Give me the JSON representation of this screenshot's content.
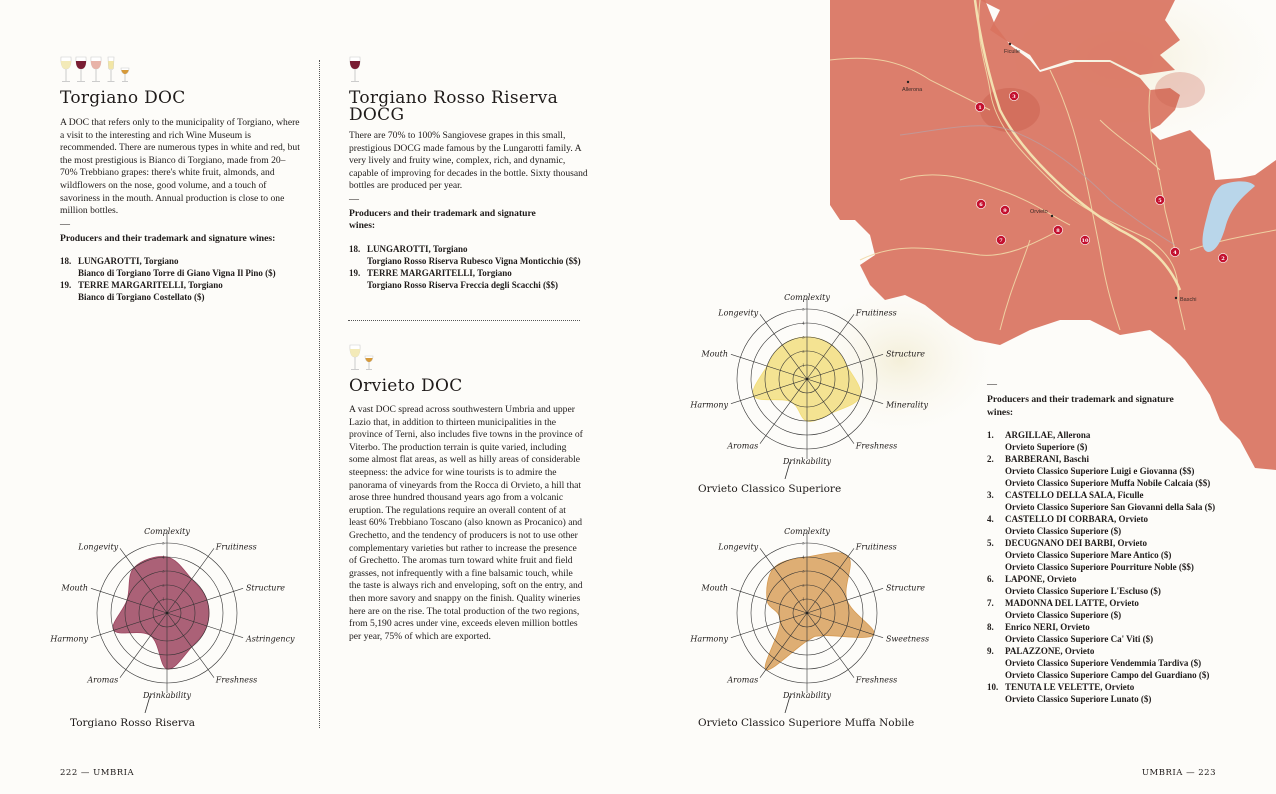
{
  "left_page": {
    "torgiano_doc": {
      "icons": [
        "white-wine-glass-icon",
        "red-wine-glass-icon",
        "rose-wine-glass-icon",
        "sparkling-wine-glass-icon",
        "dessert-wine-glass-icon"
      ],
      "title": "Torgiano DOC",
      "body": "A DOC that refers only to the municipality of Torgiano, where a visit to the interesting and rich Wine Museum is recommended. There are numerous types in white and red, but the most prestigious is Bianco di Torgiano, made from 20–70% Trebbiano grapes: there's white fruit, almonds, and wildflowers on the nose, good volume, and a touch of savoriness in the mouth. Annual production is close to one million bottles.",
      "dash": "—",
      "producers_heading": "Producers and their trademark and signature wines:",
      "producers": [
        {
          "num": "18.",
          "name": "LUNGAROTTI, Torgiano",
          "wines": [
            "Bianco di Torgiano Torre di Giano Vigna Il Pino ($)"
          ]
        },
        {
          "num": "19.",
          "name": "TERRE MARGARITELLI, Torgiano",
          "wines": [
            "Bianco di Torgiano Costellato ($)"
          ]
        }
      ]
    },
    "torgiano_rosso": {
      "icons": [
        "red-wine-glass-icon"
      ],
      "title": "Torgiano Rosso Riserva DOCG",
      "body": "There are 70% to 100% Sangiovese grapes in this small, prestigious DOCG made famous by the Lungarotti family. A very lively and fruity wine, complex, rich, and dynamic, capable of improving for decades in the bottle. Sixty thousand bottles are produced per year.",
      "dash": "—",
      "producers_heading": "Producers and their trademark and signature wines:",
      "producers": [
        {
          "num": "18.",
          "name": "LUNGAROTTI, Torgiano",
          "wines": [
            "Torgiano Rosso Riserva Rubesco Vigna Monticchio ($$)"
          ]
        },
        {
          "num": "19.",
          "name": "TERRE MARGARITELLI, Torgiano",
          "wines": [
            "Torgiano Rosso Riserva Freccia degli Scacchi ($$)"
          ]
        }
      ]
    },
    "orvieto_doc": {
      "icons": [
        "white-wine-glass-icon",
        "dessert-wine-glass-icon"
      ],
      "title": "Orvieto DOC",
      "body": "A vast DOC spread across southwestern Umbria and upper Lazio that, in addition to thirteen municipalities in the province of Terni, also includes five towns in the province of Viterbo. The production terrain is quite varied, including some almost flat areas, as well as hilly areas of considerable steepness: the advice for wine tourists is to admire the panorama of vineyards from the Rocca di Orvieto, a hill that arose three hundred thousand years ago from a volcanic eruption. The regulations require an overall content of at least 60% Trebbiano Toscano (also known as Procanico) and Grechetto, and the tendency of producers is not to use other complementary varieties but rather to increase the presence of Grechetto. The aromas turn toward white fruit and field grasses, not infrequently with a fine balsamic touch, while the taste is always rich and enveloping, soft on the entry, and then more savory and snappy on the finish. Quality wineries here are on the rise. The total production of the two regions, from 5,190 acres under vine, exceeds eleven million bottles per year, 75% of which are exported."
    },
    "footer": "222 — UMBRIA"
  },
  "right_page": {
    "map": {
      "towns": [
        "Ficulle",
        "Allerona",
        "Orvieto",
        "Baschi"
      ],
      "markers": [
        "1",
        "2",
        "3",
        "4",
        "5",
        "6",
        "7",
        "8",
        "9",
        "10"
      ],
      "colors": {
        "land": "#d9735f",
        "marker": "#c4102f",
        "lake": "#b9d6ea",
        "roads": "#f1d9a8"
      }
    },
    "dash": "—",
    "producers_heading": "Producers and their trademark and signature wines:",
    "producers": [
      {
        "num": "1.",
        "name": "ARGILLAE, Allerona",
        "wines": [
          "Orvieto Superiore ($)"
        ]
      },
      {
        "num": "2.",
        "name": "BARBERANI, Baschi",
        "wines": [
          "Orvieto Classico Superiore Luigi e Giovanna ($$)",
          "Orvieto Classico Superiore Muffa Nobile Calcaia ($$)"
        ]
      },
      {
        "num": "3.",
        "name": "CASTELLO DELLA SALA, Ficulle",
        "wines": [
          "Orvieto Classico Superiore San Giovanni della Sala ($)"
        ]
      },
      {
        "num": "4.",
        "name": "CASTELLO DI CORBARA, Orvieto",
        "wines": [
          "Orvieto Classico Superiore ($)"
        ]
      },
      {
        "num": "5.",
        "name": "DECUGNANO DEI BARBI, Orvieto",
        "wines": [
          "Orvieto Classico Superiore Mare Antico ($)",
          "Orvieto Classico Superiore Pourriture Noble ($$)"
        ]
      },
      {
        "num": "6.",
        "name": "LAPONE, Orvieto",
        "wines": [
          "Orvieto Classico Superiore L'Escluso ($)"
        ]
      },
      {
        "num": "7.",
        "name": "MADONNA DEL LATTE, Orvieto",
        "wines": [
          "Orvieto Classico Superiore ($)"
        ]
      },
      {
        "num": "8.",
        "name": "Enrico NERI, Orvieto",
        "wines": [
          "Orvieto Classico Superiore Ca' Viti ($)"
        ]
      },
      {
        "num": "9.",
        "name": "PALAZZONE, Orvieto",
        "wines": [
          "Orvieto Classico Superiore Vendemmia Tardiva ($)",
          "Orvieto Classico Superiore Campo del Guardiano ($)"
        ]
      },
      {
        "num": "10.",
        "name": "TENUTA LE VELETTE, Orvieto",
        "wines": [
          "Orvieto Classico Superiore Lunato ($)"
        ]
      }
    ],
    "footer": "UMBRIA — 223"
  },
  "chart_data": [
    {
      "type": "radar",
      "title": "Torgiano Rosso Riserva",
      "axes": [
        "Complexity",
        "Fruitiness",
        "Structure",
        "Astringency",
        "Freshness",
        "Drinkability",
        "Aromas",
        "Harmony",
        "Mouth",
        "Longevity"
      ],
      "values": [
        4,
        3,
        3,
        3,
        3,
        4,
        2,
        4,
        3,
        4
      ],
      "ticks": [
        "1",
        "2",
        "3",
        "4",
        "5"
      ],
      "range": [
        0,
        5
      ],
      "color": "#9c4560"
    },
    {
      "type": "radar",
      "title": "Orvieto Classico Superiore",
      "axes": [
        "Complexity",
        "Fruitiness",
        "Structure",
        "Minerality",
        "Freshness",
        "Drinkability",
        "Aromas",
        "Harmony",
        "Mouth",
        "Longevity"
      ],
      "values": [
        3,
        3,
        3,
        4,
        3,
        3,
        2,
        4,
        3,
        3
      ],
      "ticks": [
        "1",
        "2",
        "3",
        "4",
        "5"
      ],
      "range": [
        0,
        5
      ],
      "color": "#f1dc78"
    },
    {
      "type": "radar",
      "title": "Orvieto Classico Superiore Muffa Nobile",
      "axes": [
        "Complexity",
        "Fruitiness",
        "Structure",
        "Sweetness",
        "Freshness",
        "Drinkability",
        "Aromas",
        "Harmony",
        "Mouth",
        "Longevity"
      ],
      "values": [
        4,
        5,
        3,
        5,
        2,
        2,
        5,
        2,
        3,
        4
      ],
      "ticks": [
        "1",
        "2",
        "3",
        "4",
        "5"
      ],
      "range": [
        0,
        5
      ],
      "color": "#d69a52"
    }
  ]
}
